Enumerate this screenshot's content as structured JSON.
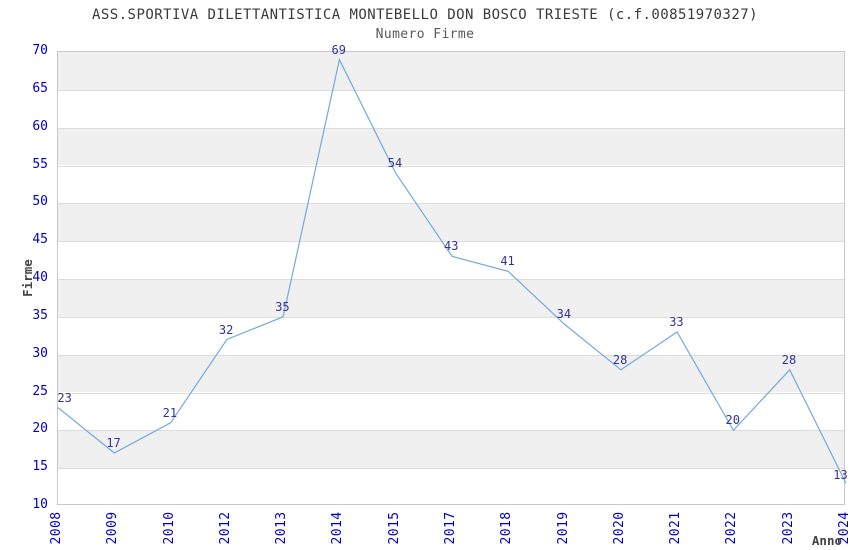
{
  "title": "ASS.SPORTIVA DILETTANTISTICA MONTEBELLO DON BOSCO TRIESTE (c.f.00851970327)",
  "subtitle": "Numero Firme",
  "chart_data": {
    "type": "line",
    "title": "ASS.SPORTIVA DILETTANTISTICA MONTEBELLO DON BOSCO TRIESTE (c.f.00851970327)",
    "subtitle": "Numero Firme",
    "xlabel": "Anno",
    "ylabel": "Firme",
    "categories": [
      "2008",
      "2009",
      "2010",
      "2012",
      "2013",
      "2014",
      "2015",
      "2017",
      "2018",
      "2019",
      "2020",
      "2021",
      "2022",
      "2023",
      "2024"
    ],
    "values": [
      23,
      17,
      21,
      32,
      35,
      69,
      54,
      43,
      41,
      34,
      28,
      33,
      20,
      28,
      13
    ],
    "ylim": [
      10,
      70
    ],
    "ytick_step": 5,
    "yticks": [
      10,
      15,
      20,
      25,
      30,
      35,
      40,
      45,
      50,
      55,
      60,
      65,
      70
    ],
    "grid": true,
    "shaded_bands": [
      [
        15,
        20
      ],
      [
        25,
        30
      ],
      [
        35,
        40
      ],
      [
        45,
        50
      ],
      [
        55,
        60
      ],
      [
        65,
        70
      ]
    ],
    "legend": "none",
    "colors": {
      "line": "#74a9e0",
      "point_label": "#333399",
      "tick_label": "#0000cd",
      "band_fill": "#f0f0f0",
      "gridline": "#dcdcdc",
      "plot_border": "#c9c9c9",
      "title": "#3a3a3a",
      "subtitle": "#595959",
      "axis_title": "#444444",
      "background": "#ffffff"
    }
  }
}
